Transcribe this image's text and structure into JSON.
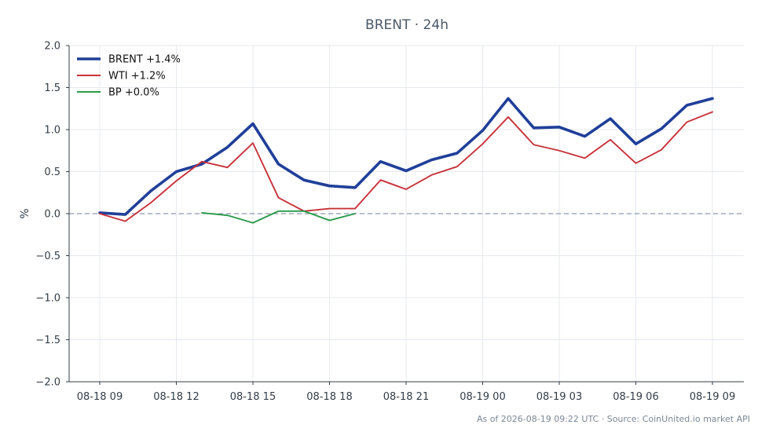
{
  "chart_data": {
    "type": "line",
    "title": "BRENT · 24h",
    "xlabel": "",
    "ylabel": "%",
    "ylim": [
      -2.0,
      2.0
    ],
    "yticks": [
      "2.0",
      "1.5",
      "1.0",
      "0.5",
      "0.0",
      "−0.5",
      "−1.0",
      "−1.5",
      "−2.0"
    ],
    "ytick_values": [
      2.0,
      1.5,
      1.0,
      0.5,
      0.0,
      -0.5,
      -1.0,
      -1.5,
      -2.0
    ],
    "xticks": [
      "08-18 09",
      "08-18 12",
      "08-18 15",
      "08-18 18",
      "08-18 21",
      "08-19 00",
      "08-19 03",
      "08-19 06",
      "08-19 09"
    ],
    "xtick_positions": [
      0,
      3,
      6,
      9,
      12,
      15,
      18,
      21,
      24
    ],
    "x": [
      "08-18 09",
      "08-18 10",
      "08-18 11",
      "08-18 12",
      "08-18 13",
      "08-18 14",
      "08-18 15",
      "08-18 16",
      "08-18 17",
      "08-18 18",
      "08-18 19",
      "08-18 20",
      "08-18 21",
      "08-18 22",
      "08-18 23",
      "08-19 00",
      "08-19 01",
      "08-19 02",
      "08-19 03",
      "08-19 04",
      "08-19 05",
      "08-19 06",
      "08-19 07",
      "08-19 08",
      "08-19 09"
    ],
    "series": [
      {
        "name": "BRENT +1.4%",
        "color": "#1f3f99",
        "width": "heavy",
        "values": [
          0.01,
          -0.01,
          0.27,
          0.5,
          0.59,
          0.79,
          1.07,
          0.59,
          0.4,
          0.33,
          0.31,
          0.62,
          0.51,
          0.64,
          0.72,
          0.99,
          1.37,
          1.02,
          1.03,
          0.92,
          1.13,
          0.83,
          1.01,
          1.29,
          1.37
        ]
      },
      {
        "name": "WTI +1.2%",
        "color": "#c8323a",
        "width": "normal",
        "values": [
          0.0,
          -0.09,
          0.13,
          0.39,
          0.62,
          0.55,
          0.84,
          0.19,
          0.03,
          0.06,
          0.06,
          0.4,
          0.29,
          0.46,
          0.56,
          0.83,
          1.15,
          0.82,
          0.75,
          0.66,
          0.88,
          0.6,
          0.76,
          1.09,
          1.21
        ]
      },
      {
        "name": "BP +0.0%",
        "color": "#2a9a4a",
        "width": "normal",
        "values": [
          null,
          null,
          null,
          null,
          0.01,
          -0.02,
          -0.11,
          0.03,
          0.03,
          -0.08,
          0.0,
          null,
          null,
          null,
          null,
          null,
          null,
          null,
          null,
          null,
          null,
          null,
          null,
          null,
          null
        ]
      }
    ],
    "reference_line": {
      "y": 0.0,
      "style": "dashed"
    },
    "grid": true,
    "legend": "top-left"
  },
  "footer": "As of 2026-08-19 09:22 UTC · Source: CoinUnited.io market API"
}
